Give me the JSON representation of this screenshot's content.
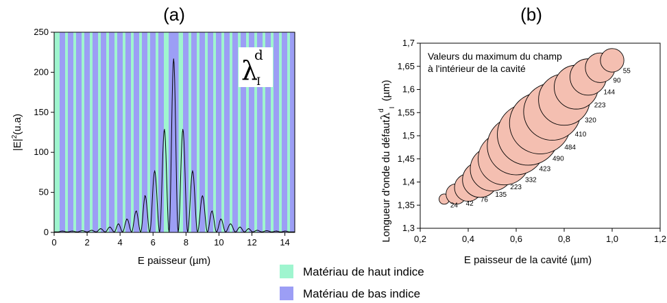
{
  "chart_data": [
    {
      "type": "line",
      "title": "(a)",
      "xlabel": "E paisseur (µm)",
      "ylabel": "|E|",
      "ylabel_sup": "2",
      "ylabel_unit": "(u.a)",
      "xlim": [
        0,
        14.6
      ],
      "ylim": [
        0,
        250
      ],
      "xticks": [
        "0",
        "2",
        "4",
        "6",
        "8",
        "10",
        "12",
        "14"
      ],
      "yticks": [
        "0",
        "50",
        "100",
        "150",
        "200",
        "250"
      ],
      "annotation": {
        "symbol": "λ",
        "superscript": "d",
        "subscript": "I"
      },
      "series": [
        {
          "x": [
            0.5,
            1.1,
            1.7,
            2.3,
            2.8,
            3.4,
            3.9,
            4.4,
            5.0,
            5.5,
            6.1,
            6.7,
            7.25,
            7.8,
            8.4,
            9.0,
            9.6,
            10.1,
            10.7,
            11.3,
            11.8,
            12.3,
            12.9,
            13.5,
            14.0
          ],
          "y": [
            1,
            1,
            1.5,
            2,
            4,
            6,
            10,
            16,
            26,
            45,
            76,
            128,
            216,
            128,
            76,
            45,
            26,
            16,
            10,
            6,
            4,
            2,
            1.5,
            1,
            1
          ]
        }
      ],
      "bands": {
        "high_color": "#9ff5cf",
        "low_color": "#9c9ef5",
        "center_low_band": [
          6.95,
          7.55
        ]
      }
    },
    {
      "type": "scatter",
      "title": "(b)",
      "xlabel": "E paisseur de la cavité (µm)",
      "ylabel": "Longueur d'onde du défaut",
      "ylabel_symbol": "λ",
      "ylabel_sup": "d",
      "ylabel_sub": "I",
      "ylabel_unit": "(µm)",
      "xlim": [
        0.2,
        1.2
      ],
      "ylim": [
        1.3,
        1.7
      ],
      "xticks": [
        "0,2",
        "0,4",
        "0,6",
        "0,8",
        "1,0",
        "1,2"
      ],
      "yticks": [
        "1,3",
        "1,35",
        "1,4",
        "1,45",
        "1,5",
        "1,55",
        "1,6",
        "1,65",
        "1,7"
      ],
      "annotation_lines": [
        "Valeurs du maximum du champ",
        "à l'intérieur de la cavité"
      ],
      "bubble_color": "#f4bfb1",
      "points": [
        {
          "x": 0.3,
          "y": 1.363,
          "size": 24,
          "label": "24"
        },
        {
          "x": 0.35,
          "y": 1.374,
          "size": 42,
          "label": "42"
        },
        {
          "x": 0.4,
          "y": 1.388,
          "size": 76,
          "label": "76"
        },
        {
          "x": 0.45,
          "y": 1.405,
          "size": 135,
          "label": "135"
        },
        {
          "x": 0.5,
          "y": 1.428,
          "size": 223,
          "label": "223"
        },
        {
          "x": 0.55,
          "y": 1.45,
          "size": 332,
          "label": "332"
        },
        {
          "x": 0.6,
          "y": 1.478,
          "size": 423,
          "label": "423"
        },
        {
          "x": 0.65,
          "y": 1.503,
          "size": 490,
          "label": "490"
        },
        {
          "x": 0.7,
          "y": 1.527,
          "size": 484,
          "label": "484"
        },
        {
          "x": 0.75,
          "y": 1.552,
          "size": 410,
          "label": "410"
        },
        {
          "x": 0.8,
          "y": 1.578,
          "size": 320,
          "label": "320"
        },
        {
          "x": 0.85,
          "y": 1.605,
          "size": 223,
          "label": "223"
        },
        {
          "x": 0.9,
          "y": 1.627,
          "size": 144,
          "label": "144"
        },
        {
          "x": 0.95,
          "y": 1.647,
          "size": 90,
          "label": "90"
        },
        {
          "x": 1.0,
          "y": 1.663,
          "size": 55,
          "label": "55"
        }
      ]
    }
  ],
  "legend": {
    "items": [
      {
        "label": "Matériau de haut indice",
        "color": "#9ff5cf"
      },
      {
        "label": "Matériau de bas indice",
        "color": "#9c9ef5"
      }
    ]
  }
}
